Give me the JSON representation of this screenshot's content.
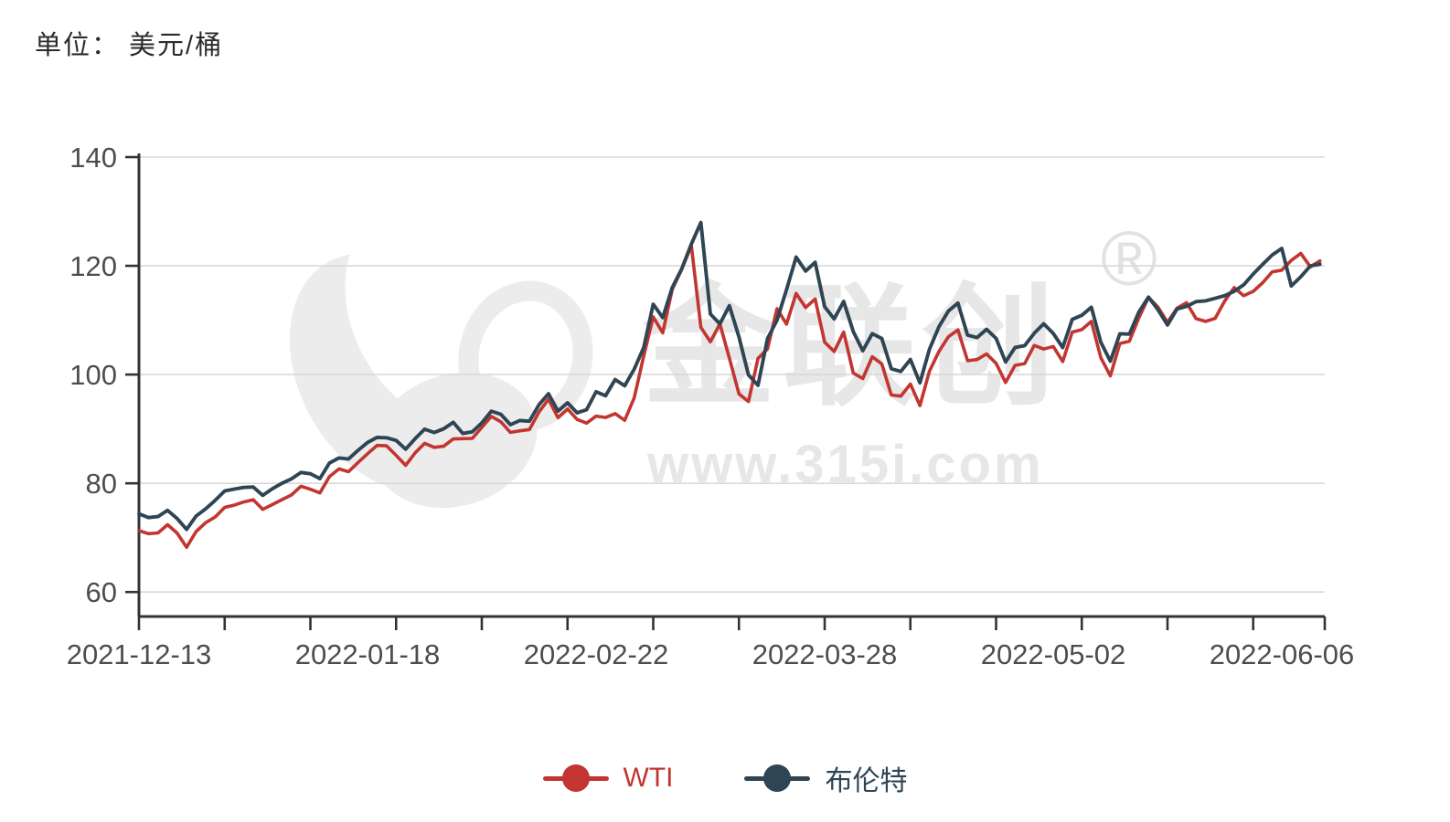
{
  "page": {
    "unit_label": "单位： 美元/桶"
  },
  "watermark": {
    "brand_text": "金联创",
    "registered_mark": "®",
    "url_text": "www.315i.com"
  },
  "chart_data": {
    "type": "line",
    "title": "",
    "xlabel": "",
    "ylabel": "美元/桶",
    "grid": true,
    "legend_position": "bottom",
    "ylim": [
      55.5,
      140
    ],
    "yticks": [
      60,
      80,
      100,
      120,
      140
    ],
    "xticks_labeled": [
      "2021-12-13",
      "2022-01-18",
      "2022-02-22",
      "2022-03-28",
      "2022-05-02",
      "2022-06-06"
    ],
    "x": [
      "2021-12-13",
      "2021-12-14",
      "2021-12-15",
      "2021-12-16",
      "2021-12-17",
      "2021-12-20",
      "2021-12-21",
      "2021-12-22",
      "2021-12-23",
      "2021-12-27",
      "2021-12-28",
      "2021-12-29",
      "2021-12-30",
      "2021-12-31",
      "2022-01-03",
      "2022-01-04",
      "2022-01-05",
      "2022-01-06",
      "2022-01-07",
      "2022-01-10",
      "2022-01-11",
      "2022-01-12",
      "2022-01-13",
      "2022-01-14",
      "2022-01-18",
      "2022-01-19",
      "2022-01-20",
      "2022-01-21",
      "2022-01-24",
      "2022-01-25",
      "2022-01-26",
      "2022-01-27",
      "2022-01-28",
      "2022-01-31",
      "2022-02-01",
      "2022-02-02",
      "2022-02-03",
      "2022-02-04",
      "2022-02-07",
      "2022-02-08",
      "2022-02-09",
      "2022-02-10",
      "2022-02-11",
      "2022-02-14",
      "2022-02-15",
      "2022-02-16",
      "2022-02-17",
      "2022-02-18",
      "2022-02-22",
      "2022-02-23",
      "2022-02-24",
      "2022-02-25",
      "2022-02-28",
      "2022-03-01",
      "2022-03-02",
      "2022-03-03",
      "2022-03-04",
      "2022-03-07",
      "2022-03-08",
      "2022-03-09",
      "2022-03-10",
      "2022-03-11",
      "2022-03-14",
      "2022-03-15",
      "2022-03-16",
      "2022-03-17",
      "2022-03-18",
      "2022-03-21",
      "2022-03-22",
      "2022-03-23",
      "2022-03-24",
      "2022-03-25",
      "2022-03-28",
      "2022-03-29",
      "2022-03-30",
      "2022-03-31",
      "2022-04-01",
      "2022-04-04",
      "2022-04-05",
      "2022-04-06",
      "2022-04-07",
      "2022-04-08",
      "2022-04-11",
      "2022-04-12",
      "2022-04-13",
      "2022-04-14",
      "2022-04-18",
      "2022-04-19",
      "2022-04-20",
      "2022-04-21",
      "2022-04-22",
      "2022-04-25",
      "2022-04-26",
      "2022-04-27",
      "2022-04-28",
      "2022-04-29",
      "2022-05-02",
      "2022-05-03",
      "2022-05-04",
      "2022-05-05",
      "2022-05-06",
      "2022-05-09",
      "2022-05-10",
      "2022-05-11",
      "2022-05-12",
      "2022-05-13",
      "2022-05-16",
      "2022-05-17",
      "2022-05-18",
      "2022-05-19",
      "2022-05-20",
      "2022-05-23",
      "2022-05-24",
      "2022-05-25",
      "2022-05-26",
      "2022-05-27",
      "2022-05-31",
      "2022-06-01",
      "2022-06-02",
      "2022-06-03",
      "2022-06-06",
      "2022-06-07",
      "2022-06-08",
      "2022-06-09",
      "2022-06-10"
    ],
    "series": [
      {
        "name": "WTI",
        "color": "#c23531",
        "values": [
          71.29,
          70.73,
          70.87,
          72.38,
          70.86,
          68.23,
          71.12,
          72.76,
          73.79,
          75.57,
          75.98,
          76.56,
          76.99,
          75.21,
          76.08,
          76.99,
          77.85,
          79.46,
          78.9,
          78.23,
          81.22,
          82.64,
          82.12,
          83.82,
          85.43,
          86.96,
          86.9,
          85.14,
          83.31,
          85.6,
          87.35,
          86.61,
          86.82,
          88.15,
          88.2,
          88.26,
          90.27,
          92.31,
          91.32,
          89.36,
          89.66,
          89.88,
          93.1,
          95.46,
          92.07,
          93.66,
          91.76,
          91.07,
          92.35,
          92.1,
          92.81,
          91.59,
          95.72,
          103.41,
          110.6,
          107.67,
          115.68,
          119.4,
          123.7,
          108.7,
          106.02,
          109.33,
          103.01,
          96.44,
          95.04,
          102.98,
          104.7,
          112.12,
          109.27,
          114.93,
          112.34,
          113.9,
          105.96,
          104.24,
          107.82,
          100.28,
          99.27,
          103.28,
          101.96,
          96.23,
          96.03,
          98.26,
          94.29,
          100.6,
          104.25,
          106.95,
          108.21,
          102.56,
          102.75,
          103.79,
          102.07,
          98.54,
          101.7,
          102.02,
          105.36,
          104.69,
          105.17,
          102.41,
          107.81,
          108.26,
          109.77,
          103.09,
          99.76,
          105.71,
          106.13,
          110.49,
          114.2,
          112.4,
          109.59,
          112.21,
          113.23,
          110.29,
          109.77,
          110.33,
          113.5,
          116.0,
          114.5,
          115.3,
          116.9,
          118.9,
          119.2,
          121.0,
          122.3,
          119.8,
          120.9
        ]
      },
      {
        "name": "布伦特",
        "color": "#2f4554",
        "values": [
          74.39,
          73.7,
          73.88,
          75.02,
          73.52,
          71.52,
          73.98,
          75.29,
          76.85,
          78.6,
          78.94,
          79.23,
          79.32,
          77.78,
          78.98,
          80.0,
          80.8,
          81.99,
          81.75,
          80.87,
          83.72,
          84.67,
          84.47,
          86.06,
          87.51,
          88.44,
          88.38,
          87.89,
          86.27,
          88.2,
          89.96,
          89.34,
          90.03,
          91.21,
          89.16,
          89.47,
          91.11,
          93.27,
          92.69,
          90.78,
          91.55,
          91.41,
          94.44,
          96.48,
          93.28,
          94.81,
          92.97,
          93.54,
          96.84,
          96.1,
          99.08,
          97.93,
          100.99,
          104.97,
          112.93,
          110.46,
          116.0,
          119.5,
          124.0,
          127.98,
          111.14,
          109.33,
          112.67,
          106.9,
          99.91,
          98.02,
          106.64,
          110.0,
          115.62,
          121.6,
          119.03,
          120.65,
          112.48,
          110.23,
          113.45,
          107.91,
          104.39,
          107.53,
          106.64,
          101.07,
          100.58,
          102.78,
          98.48,
          104.64,
          108.78,
          111.7,
          113.16,
          107.25,
          106.8,
          108.33,
          106.65,
          102.32,
          104.99,
          105.32,
          107.59,
          109.34,
          107.58,
          104.97,
          110.14,
          110.9,
          112.39,
          105.94,
          102.46,
          107.51,
          107.45,
          111.55,
          114.24,
          111.93,
          109.11,
          112.04,
          112.55,
          113.42,
          113.56,
          114.03,
          114.5,
          115.3,
          116.5,
          118.5,
          120.3,
          122.0,
          123.2,
          116.3,
          118.0,
          120.0,
          120.3
        ]
      }
    ]
  }
}
